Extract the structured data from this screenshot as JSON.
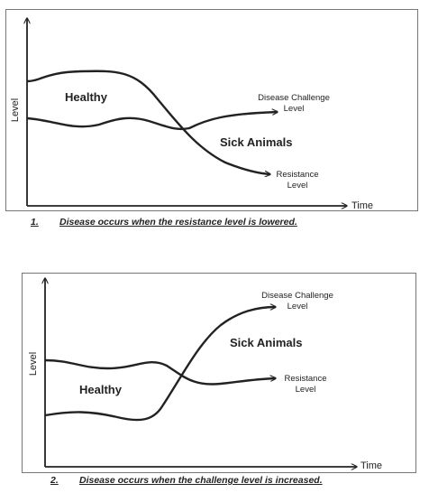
{
  "diagrams": [
    {
      "y_axis_label": "Level",
      "x_axis_label": "Time",
      "region_labels": [
        "Healthy",
        "Sick Animals"
      ],
      "curve_labels": [
        {
          "line1": "Disease Challenge",
          "line2": "Level"
        },
        {
          "line1": "Resistance",
          "line2": "Level"
        }
      ],
      "caption": {
        "number": "1.",
        "text": "Disease occurs when the resistance level is lowered."
      }
    },
    {
      "y_axis_label": "Level",
      "x_axis_label": "Time",
      "region_labels": [
        "Healthy",
        "Sick Animals"
      ],
      "curve_labels": [
        {
          "line1": "Disease Challenge",
          "line2": "Level"
        },
        {
          "line1": "Resistance",
          "line2": "Level"
        }
      ],
      "caption": {
        "number": "2.",
        "text": "Disease occurs when the challenge level is increased."
      }
    }
  ],
  "colors": {
    "line": "#222222",
    "frame": "#777777"
  }
}
